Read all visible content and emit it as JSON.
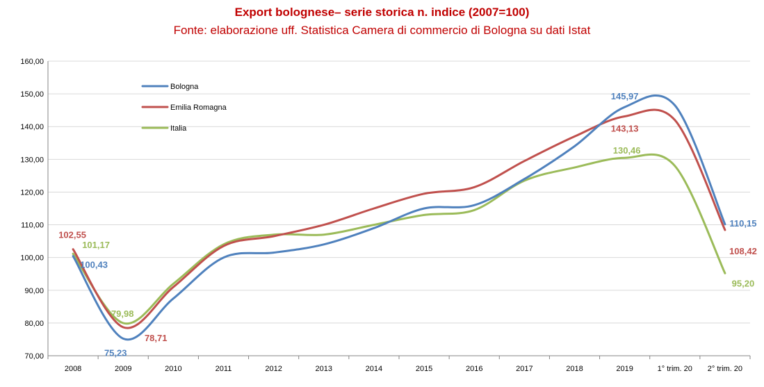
{
  "chart_data": {
    "type": "line",
    "title": "Export bolognese– serie storica n. indice (2007=100)",
    "subtitle": "Fonte: elaborazione uff. Statistica Camera di commercio di Bologna su dati Istat",
    "categories": [
      "2008",
      "2009",
      "2010",
      "2011",
      "2012",
      "2013",
      "2014",
      "2015",
      "2016",
      "2017",
      "2018",
      "2019",
      "1° trim. 20",
      "2° trim. 20"
    ],
    "y_ticks": [
      "70,00",
      "80,00",
      "90,00",
      "100,00",
      "110,00",
      "120,00",
      "130,00",
      "140,00",
      "150,00",
      "160,00"
    ],
    "ylim": [
      70,
      160
    ],
    "grid": true,
    "legend_position": "top-left",
    "series": [
      {
        "name": "Bologna",
        "color": "#4f81bd",
        "values": [
          100.43,
          75.23,
          87.5,
          100.0,
          101.5,
          104.0,
          109.0,
          115.0,
          116.0,
          124.0,
          134.0,
          145.97,
          146.5,
          110.15
        ],
        "labels": [
          {
            "index": 0,
            "text": "100,43"
          },
          {
            "index": 1,
            "text": "75,23"
          },
          {
            "index": 11,
            "text": "145,97"
          },
          {
            "index": 13,
            "text": "110,15"
          }
        ]
      },
      {
        "name": "Emilia Romagna",
        "color": "#c0504d",
        "values": [
          102.55,
          78.71,
          91.0,
          103.5,
          106.5,
          110.0,
          115.0,
          119.5,
          121.5,
          129.5,
          137.0,
          143.13,
          142.0,
          108.42
        ],
        "labels": [
          {
            "index": 0,
            "text": "102,55"
          },
          {
            "index": 1,
            "text": "78,71"
          },
          {
            "index": 11,
            "text": "143,13"
          },
          {
            "index": 13,
            "text": "108,42"
          }
        ]
      },
      {
        "name": "Italia",
        "color": "#9bbb59",
        "values": [
          101.17,
          79.98,
          92.0,
          104.0,
          107.0,
          107.0,
          110.0,
          113.0,
          114.5,
          123.5,
          127.5,
          130.46,
          128.0,
          95.2
        ],
        "labels": [
          {
            "index": 0,
            "text": "101,17"
          },
          {
            "index": 1,
            "text": "79,98"
          },
          {
            "index": 11,
            "text": "130,46"
          },
          {
            "index": 13,
            "text": "95,20"
          }
        ]
      }
    ]
  }
}
